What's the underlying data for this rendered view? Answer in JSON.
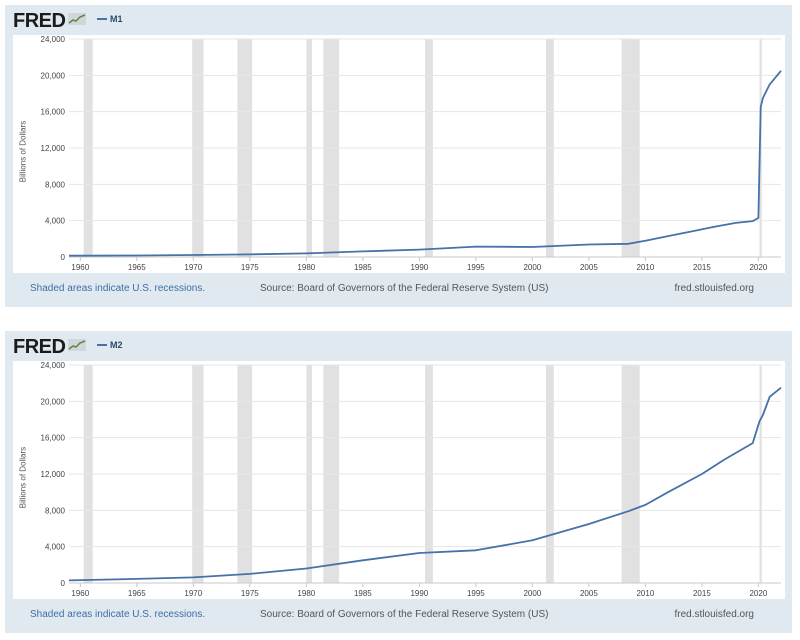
{
  "colors": {
    "line": "#4572a7",
    "recession": "#e1e1e1",
    "panel": "#e1e9f0",
    "link": "#3c6fa8"
  },
  "panels": [
    {
      "logo": "FRED",
      "logo_icon": "fred-chart-icon",
      "series_name": "M1",
      "ylabel": "Billions of Dollars",
      "footer_left": "Shaded areas indicate U.S. recessions.",
      "footer_source": "Source: Board of Governors of the Federal Reserve System (US)",
      "footer_right": "fred.stlouisfed.org"
    },
    {
      "logo": "FRED",
      "logo_icon": "fred-chart-icon",
      "series_name": "M2",
      "ylabel": "Billions of Dollars",
      "footer_left": "Shaded areas indicate U.S. recessions.",
      "footer_source": "Source: Board of Governors of the Federal Reserve System (US)",
      "footer_right": "fred.stlouisfed.org"
    }
  ],
  "chart_data": [
    {
      "type": "line",
      "title": "",
      "xlabel": "",
      "ylabel": "Billions of Dollars",
      "xlim": [
        1959,
        2022
      ],
      "ylim": [
        0,
        24000
      ],
      "x_ticks": [
        "1960",
        "1965",
        "1970",
        "1975",
        "1980",
        "1985",
        "1990",
        "1995",
        "2000",
        "2005",
        "2010",
        "2015",
        "2020"
      ],
      "y_ticks": [
        "0",
        "4,000",
        "8,000",
        "12,000",
        "16,000",
        "20,000",
        "24,000"
      ],
      "recessions": [
        [
          1960.3,
          1961.1
        ],
        [
          1969.9,
          1970.9
        ],
        [
          1973.9,
          1975.2
        ],
        [
          1980.0,
          1980.5
        ],
        [
          1981.5,
          1982.9
        ],
        [
          1990.5,
          1991.2
        ],
        [
          2001.2,
          2001.9
        ],
        [
          2007.9,
          2009.5
        ],
        [
          2020.1,
          2020.3
        ]
      ],
      "series": [
        {
          "name": "M1",
          "x": [
            1959,
            1965,
            1970,
            1975,
            1980,
            1985,
            1990,
            1995,
            2000,
            2005,
            2008.5,
            2010,
            2012,
            2014,
            2016,
            2018,
            2019.5,
            2020.0,
            2020.2,
            2020.4,
            2021,
            2022
          ],
          "values": [
            140,
            160,
            215,
            290,
            400,
            620,
            820,
            1150,
            1100,
            1380,
            1450,
            1800,
            2300,
            2800,
            3300,
            3750,
            3950,
            4300,
            16500,
            17500,
            19000,
            20500
          ]
        }
      ]
    },
    {
      "type": "line",
      "title": "",
      "xlabel": "",
      "ylabel": "Billions of Dollars",
      "xlim": [
        1959,
        2022
      ],
      "ylim": [
        0,
        24000
      ],
      "x_ticks": [
        "1960",
        "1965",
        "1970",
        "1975",
        "1980",
        "1985",
        "1990",
        "1995",
        "2000",
        "2005",
        "2010",
        "2015",
        "2020"
      ],
      "y_ticks": [
        "0",
        "4,000",
        "8,000",
        "12,000",
        "16,000",
        "20,000",
        "24,000"
      ],
      "recessions": [
        [
          1960.3,
          1961.1
        ],
        [
          1969.9,
          1970.9
        ],
        [
          1973.9,
          1975.2
        ],
        [
          1980.0,
          1980.5
        ],
        [
          1981.5,
          1982.9
        ],
        [
          1990.5,
          1991.2
        ],
        [
          2001.2,
          2001.9
        ],
        [
          2007.9,
          2009.5
        ],
        [
          2020.1,
          2020.3
        ]
      ],
      "series": [
        {
          "name": "M2",
          "x": [
            1959,
            1965,
            1970,
            1975,
            1980,
            1985,
            1990,
            1995,
            2000,
            2005,
            2008.5,
            2010,
            2012,
            2015,
            2017,
            2019.5,
            2020.1,
            2020.4,
            2021,
            2022
          ],
          "values": [
            290,
            450,
            620,
            1000,
            1600,
            2500,
            3300,
            3600,
            4700,
            6500,
            7900,
            8600,
            10000,
            12000,
            13600,
            15400,
            17800,
            18500,
            20500,
            21500
          ]
        }
      ]
    }
  ]
}
